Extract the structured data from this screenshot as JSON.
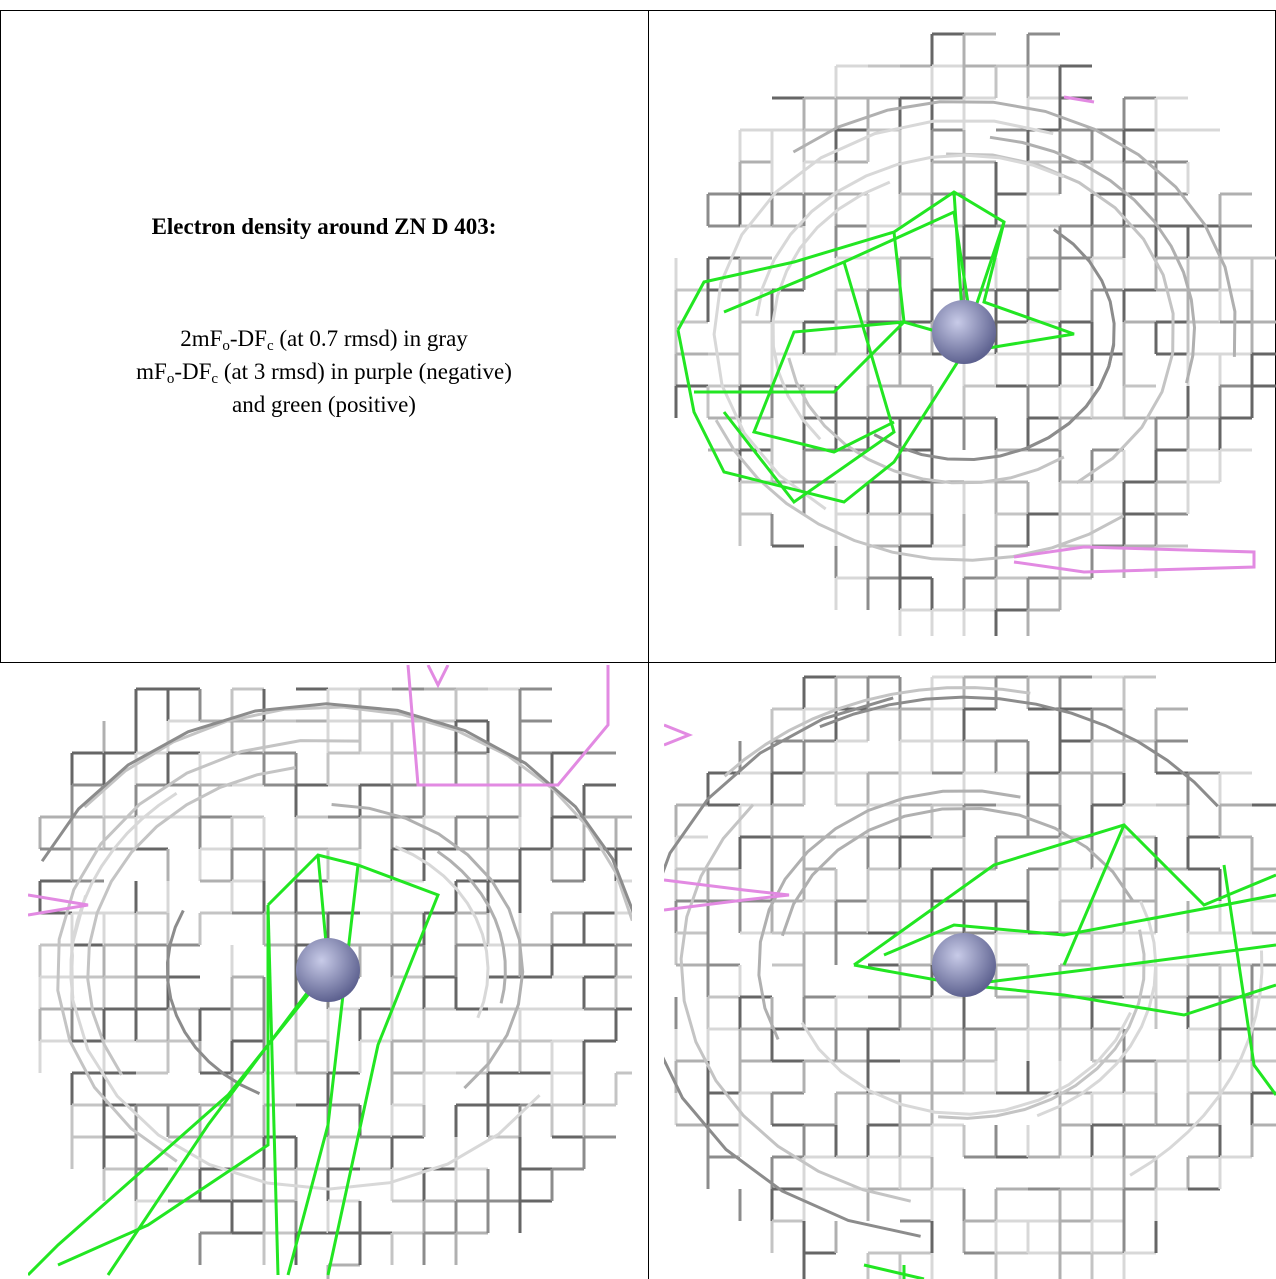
{
  "caption": {
    "title": "Electron density around ZN D 403:",
    "lines": [
      [
        {
          "text": "2mF"
        },
        {
          "text": "o",
          "sub": true
        },
        {
          "text": "-DF"
        },
        {
          "text": "c",
          "sub": true
        },
        {
          "text": " (at 0.7 rmsd) in gray"
        }
      ],
      [
        {
          "text": "mF"
        },
        {
          "text": "o",
          "sub": true
        },
        {
          "text": "-DF"
        },
        {
          "text": "c",
          "sub": true
        },
        {
          "text": " (at 3 rmsd) in purple (negative)"
        }
      ],
      [
        {
          "text": "and green (positive)"
        }
      ]
    ]
  }
}
